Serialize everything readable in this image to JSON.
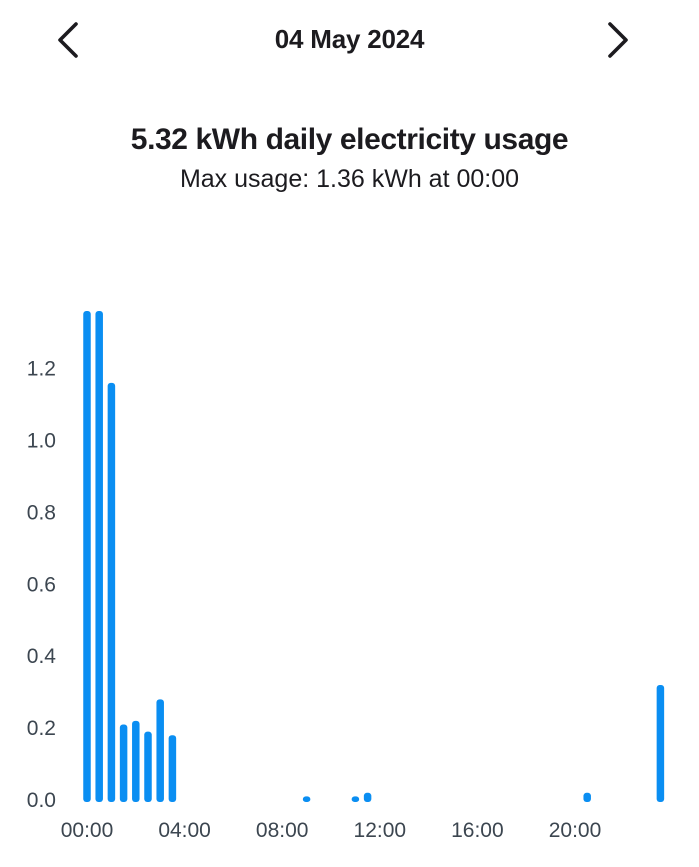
{
  "header": {
    "date": "04 May 2024",
    "prev_icon": "chevron-left-icon",
    "next_icon": "chevron-right-icon"
  },
  "summary": {
    "title": "5.32 kWh daily electricity usage",
    "subtitle": "Max usage: 1.36 kWh at 00:00"
  },
  "chart_data": {
    "type": "bar",
    "title": "",
    "xlabel": "",
    "ylabel": "",
    "bar_color": "#0a8ef2",
    "ylim": [
      0,
      1.36
    ],
    "yticks": [
      0.0,
      0.2,
      0.4,
      0.6,
      0.8,
      1.0,
      1.2
    ],
    "ytick_labels": [
      "0.0",
      "0.2",
      "0.4",
      "0.6",
      "0.8",
      "1.0",
      "1.2"
    ],
    "xticks": [
      "00:00",
      "04:00",
      "08:00",
      "12:00",
      "16:00",
      "20:00"
    ],
    "categories": [
      "00:00",
      "00:30",
      "01:00",
      "01:30",
      "02:00",
      "02:30",
      "03:00",
      "03:30",
      "04:00",
      "04:30",
      "05:00",
      "05:30",
      "06:00",
      "06:30",
      "07:00",
      "07:30",
      "08:00",
      "08:30",
      "09:00",
      "09:30",
      "10:00",
      "10:30",
      "11:00",
      "11:30",
      "12:00",
      "12:30",
      "13:00",
      "13:30",
      "14:00",
      "14:30",
      "15:00",
      "15:30",
      "16:00",
      "16:30",
      "17:00",
      "17:30",
      "18:00",
      "18:30",
      "19:00",
      "19:30",
      "20:00",
      "20:30",
      "21:00",
      "21:30",
      "22:00",
      "22:30",
      "23:00",
      "23:30"
    ],
    "values": [
      1.36,
      1.36,
      1.16,
      0.21,
      0.22,
      0.19,
      0.28,
      0.18,
      0,
      0,
      0,
      0,
      0,
      0,
      0,
      0,
      0,
      0,
      0.01,
      0,
      0,
      0,
      0.01,
      0.02,
      0,
      0,
      0,
      0,
      0,
      0,
      0,
      0,
      0,
      0,
      0,
      0,
      0,
      0,
      0,
      0,
      0,
      0.02,
      0,
      0,
      0,
      0,
      0,
      0.32
    ]
  }
}
